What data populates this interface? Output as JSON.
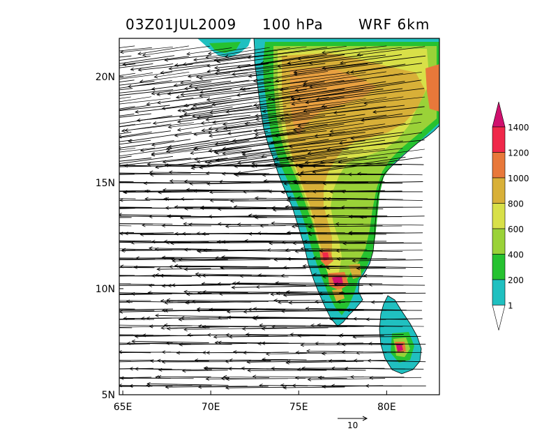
{
  "title": {
    "time": "03Z01JUL2009",
    "level": "100 hPa",
    "model": "WRF 6km"
  },
  "axes": {
    "lon_range": [
      64.8,
      83.0
    ],
    "lat_range": [
      5.0,
      21.8
    ],
    "x_ticks": [
      {
        "value": 65,
        "label": "65E"
      },
      {
        "value": 70,
        "label": "70E"
      },
      {
        "value": 75,
        "label": "75E"
      },
      {
        "value": 80,
        "label": "80E"
      }
    ],
    "y_ticks": [
      {
        "value": 5,
        "label": "5N"
      },
      {
        "value": 10,
        "label": "10N"
      },
      {
        "value": 15,
        "label": "15N"
      },
      {
        "value": 20,
        "label": "20N"
      }
    ]
  },
  "legend": {
    "levels": [
      {
        "label": "1400",
        "color": "#d0106e"
      },
      {
        "label": "1200",
        "color": "#f0284a"
      },
      {
        "label": "1000",
        "color": "#e8783a"
      },
      {
        "label": "800",
        "color": "#d8b038"
      },
      {
        "label": "600",
        "color": "#d8e048"
      },
      {
        "label": "400",
        "color": "#9ad238"
      },
      {
        "label": "200",
        "color": "#26c230"
      },
      {
        "label": "1",
        "color": "#20c0c0"
      }
    ],
    "top_color": "#d0106e",
    "bottom_color": "#ffffff"
  },
  "reference_vector": {
    "label": "10",
    "magnitude": 10
  },
  "wind": {
    "direction": "easterly",
    "description_units": "m/s"
  },
  "colors": {
    "ocean": "#ffffff",
    "land_low": "#20c0c0",
    "arrow": "#000000",
    "frame": "#000000"
  }
}
